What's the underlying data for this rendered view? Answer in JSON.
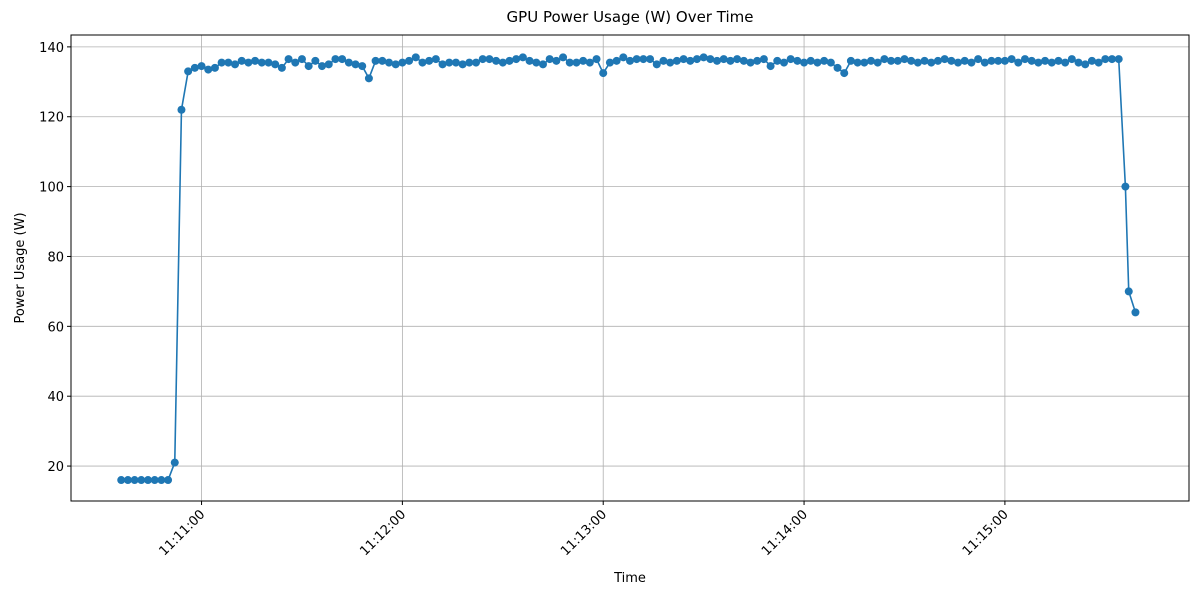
{
  "chart_data": {
    "type": "line",
    "title": "GPU Power Usage (W) Over Time",
    "x_label": "Time",
    "y_label": "Power Usage (W)",
    "color": "#1f77b4",
    "grid": true,
    "xlim": [
      "11:10:21",
      "11:15:55"
    ],
    "xticks": [
      "11:11:00",
      "11:12:00",
      "11:13:00",
      "11:14:00",
      "11:15:00"
    ],
    "ylim": [
      10,
      143.4
    ],
    "yticks": [
      20,
      40,
      60,
      80,
      100,
      120,
      140
    ],
    "x": [
      "11:10:36",
      "11:10:38",
      "11:10:40",
      "11:10:42",
      "11:10:44",
      "11:10:46",
      "11:10:48",
      "11:10:50",
      "11:10:52",
      "11:10:54",
      "11:10:56",
      "11:10:58",
      "11:11:00",
      "11:11:02",
      "11:11:04",
      "11:11:06",
      "11:11:08",
      "11:11:10",
      "11:11:12",
      "11:11:14",
      "11:11:16",
      "11:11:18",
      "11:11:20",
      "11:11:22",
      "11:11:24",
      "11:11:26",
      "11:11:28",
      "11:11:30",
      "11:11:32",
      "11:11:34",
      "11:11:36",
      "11:11:38",
      "11:11:40",
      "11:11:42",
      "11:11:44",
      "11:11:46",
      "11:11:48",
      "11:11:50",
      "11:11:52",
      "11:11:54",
      "11:11:56",
      "11:11:58",
      "11:12:00",
      "11:12:02",
      "11:12:04",
      "11:12:06",
      "11:12:08",
      "11:12:10",
      "11:12:12",
      "11:12:14",
      "11:12:16",
      "11:12:18",
      "11:12:20",
      "11:12:22",
      "11:12:24",
      "11:12:26",
      "11:12:28",
      "11:12:30",
      "11:12:32",
      "11:12:34",
      "11:12:36",
      "11:12:38",
      "11:12:40",
      "11:12:42",
      "11:12:44",
      "11:12:46",
      "11:12:48",
      "11:12:50",
      "11:12:52",
      "11:12:54",
      "11:12:56",
      "11:12:58",
      "11:13:00",
      "11:13:02",
      "11:13:04",
      "11:13:06",
      "11:13:08",
      "11:13:10",
      "11:13:12",
      "11:13:14",
      "11:13:16",
      "11:13:18",
      "11:13:20",
      "11:13:22",
      "11:13:24",
      "11:13:26",
      "11:13:28",
      "11:13:30",
      "11:13:32",
      "11:13:34",
      "11:13:36",
      "11:13:38",
      "11:13:40",
      "11:13:42",
      "11:13:44",
      "11:13:46",
      "11:13:48",
      "11:13:50",
      "11:13:52",
      "11:13:54",
      "11:13:56",
      "11:13:58",
      "11:14:00",
      "11:14:02",
      "11:14:04",
      "11:14:06",
      "11:14:08",
      "11:14:10",
      "11:14:12",
      "11:14:14",
      "11:14:16",
      "11:14:18",
      "11:14:20",
      "11:14:22",
      "11:14:24",
      "11:14:26",
      "11:14:28",
      "11:14:30",
      "11:14:32",
      "11:14:34",
      "11:14:36",
      "11:14:38",
      "11:14:40",
      "11:14:42",
      "11:14:44",
      "11:14:46",
      "11:14:48",
      "11:14:50",
      "11:14:52",
      "11:14:54",
      "11:14:56",
      "11:14:58",
      "11:15:00",
      "11:15:02",
      "11:15:04",
      "11:15:06",
      "11:15:08",
      "11:15:10",
      "11:15:12",
      "11:15:14",
      "11:15:16",
      "11:15:18",
      "11:15:20",
      "11:15:22",
      "11:15:24",
      "11:15:26",
      "11:15:28",
      "11:15:30",
      "11:15:32",
      "11:15:34",
      "11:15:36",
      "11:15:37",
      "11:15:39"
    ],
    "values": [
      16,
      16,
      16,
      16,
      16,
      16,
      16,
      16,
      21,
      122,
      133,
      134,
      134.5,
      133.5,
      134,
      135.5,
      135.5,
      135,
      136,
      135.5,
      136,
      135.5,
      135.5,
      135,
      134,
      136.5,
      135.5,
      136.5,
      134.5,
      136,
      134.5,
      135,
      136.5,
      136.5,
      135.5,
      135,
      134.5,
      131,
      136,
      136,
      135.5,
      135,
      135.5,
      136,
      137,
      135.5,
      136,
      136.5,
      135,
      135.5,
      135.5,
      135,
      135.5,
      135.5,
      136.5,
      136.5,
      136,
      135.5,
      136,
      136.5,
      137,
      136,
      135.5,
      135,
      136.5,
      136,
      137,
      135.5,
      135.5,
      136,
      135.5,
      136.5,
      132.5,
      135.5,
      136,
      137,
      136,
      136.5,
      136.5,
      136.5,
      135,
      136,
      135.5,
      136,
      136.5,
      136,
      136.5,
      137,
      136.5,
      136,
      136.5,
      136,
      136.5,
      136,
      135.5,
      136,
      136.5,
      134.5,
      136,
      135.5,
      136.5,
      136,
      135.5,
      136,
      135.5,
      136,
      135.5,
      134,
      132.5,
      136,
      135.5,
      135.5,
      136,
      135.5,
      136.5,
      136,
      136,
      136.5,
      136,
      135.5,
      136,
      135.5,
      136,
      136.5,
      136,
      135.5,
      136,
      135.5,
      136.5,
      135.5,
      136,
      136,
      136,
      136.5,
      135.5,
      136.5,
      136,
      135.5,
      136,
      135.5,
      136,
      135.5,
      136.5,
      135.5,
      135,
      136,
      135.5,
      136.5,
      136.5,
      136.5,
      100,
      70,
      64
    ]
  }
}
